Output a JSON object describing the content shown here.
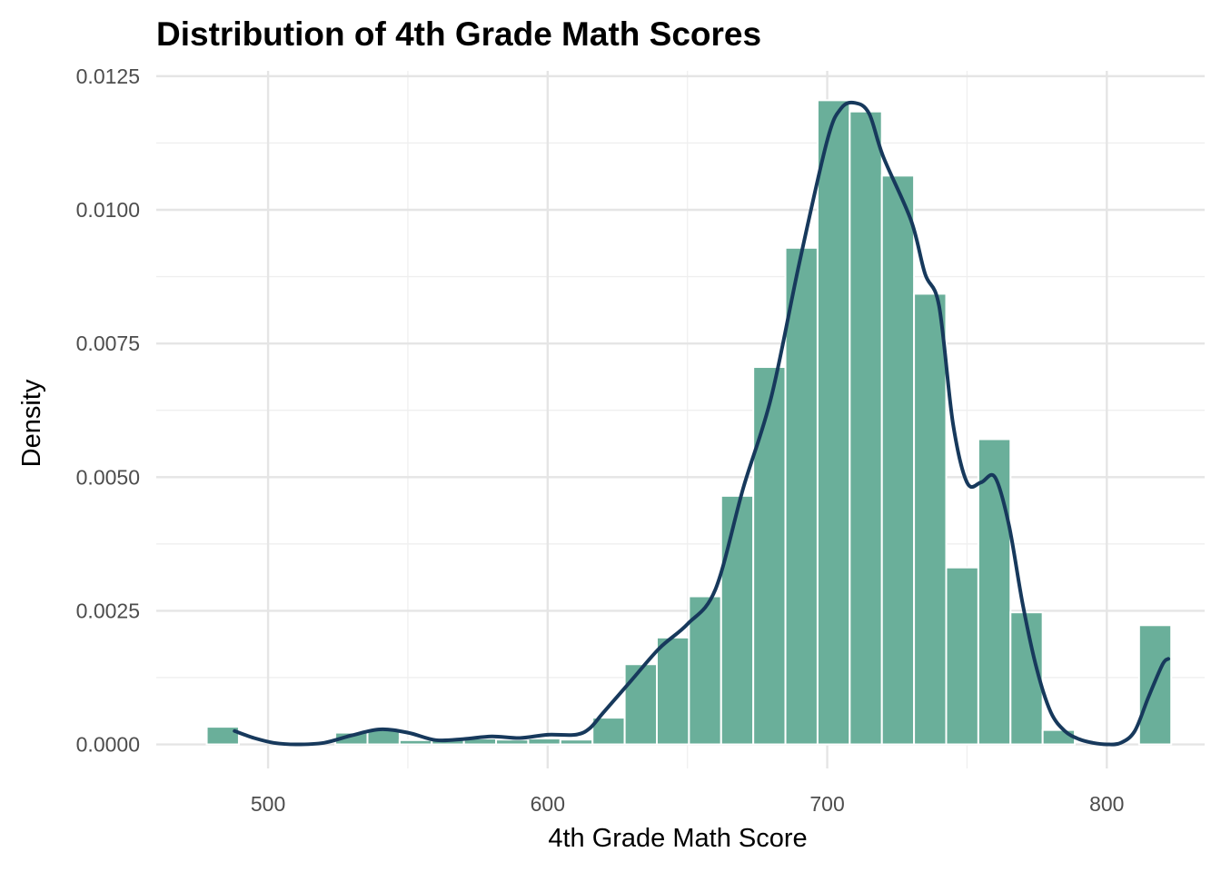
{
  "chart_data": {
    "type": "bar",
    "title": "Distribution of 4th Grade Math Scores",
    "xlabel": "4th Grade Math Score",
    "ylabel": "Density",
    "xlim": [
      460,
      835
    ],
    "ylim": [
      -0.00045,
      0.0126
    ],
    "x_ticks": [
      500,
      600,
      700,
      800
    ],
    "x_minor_ticks": [
      550,
      650,
      750
    ],
    "y_ticks": [
      0,
      0.0025,
      0.005,
      0.0075,
      0.01,
      0.0125
    ],
    "y_tick_labels": [
      "0.0000",
      "0.0025",
      "0.0050",
      "0.0075",
      "0.0100",
      "0.0125"
    ],
    "y_minor_ticks": [
      0.00125,
      0.00375,
      0.00625,
      0.00875,
      0.01125
    ],
    "grid": true,
    "legend": "none",
    "histogram": {
      "bin_width": 11.5,
      "bin_centers": [
        483.8,
        495.3,
        506.8,
        518.3,
        529.8,
        541.3,
        552.8,
        564.3,
        575.8,
        587.3,
        598.8,
        610.3,
        621.8,
        633.3,
        644.8,
        656.3,
        667.8,
        679.3,
        690.8,
        702.3,
        713.8,
        725.3,
        736.8,
        748.3,
        759.8,
        771.3,
        782.8,
        794.3,
        805.8,
        817.3
      ],
      "values": [
        0.00033,
        0,
        0,
        0,
        0.00022,
        0.00027,
        8e-05,
        9e-05,
        0.00011,
        9e-05,
        0.00011,
        9e-05,
        0.0005,
        0.0015,
        0.002,
        0.00277,
        0.00465,
        0.00706,
        0.00929,
        0.01205,
        0.01184,
        0.01064,
        0.00843,
        0.00331,
        0.00571,
        0.00247,
        0.00027,
        0,
        0,
        0.00223
      ]
    },
    "density": {
      "x": [
        488,
        495,
        502,
        510,
        520,
        530,
        540,
        550,
        560,
        570,
        580,
        590,
        600,
        610,
        615,
        620,
        630,
        640,
        650,
        660,
        670,
        680,
        690,
        700,
        705,
        710,
        715,
        720,
        730,
        735,
        740,
        745,
        750,
        755,
        760,
        765,
        770,
        775,
        780,
        785,
        790,
        795,
        800,
        805,
        810,
        815,
        820,
        822
      ],
      "y": [
        0.00025,
        0.00012,
        3e-05,
        0.0,
        3e-05,
        0.00017,
        0.00028,
        0.00022,
        8e-05,
        0.0001,
        0.00015,
        0.00012,
        0.00018,
        0.00018,
        0.0003,
        0.0006,
        0.0012,
        0.0018,
        0.00225,
        0.0029,
        0.0048,
        0.0065,
        0.009,
        0.0113,
        0.0119,
        0.012,
        0.0118,
        0.011,
        0.0098,
        0.0088,
        0.0082,
        0.006,
        0.0049,
        0.0049,
        0.005,
        0.0041,
        0.0026,
        0.0014,
        0.0006,
        0.00025,
        0.0001,
        3e-05,
        0.0,
        3e-05,
        0.00025,
        0.0009,
        0.0015,
        0.0016
      ]
    },
    "colors": {
      "bars": "#6aaf9a",
      "bar_stroke": "#ffffff",
      "density_line": "#17395c"
    }
  }
}
